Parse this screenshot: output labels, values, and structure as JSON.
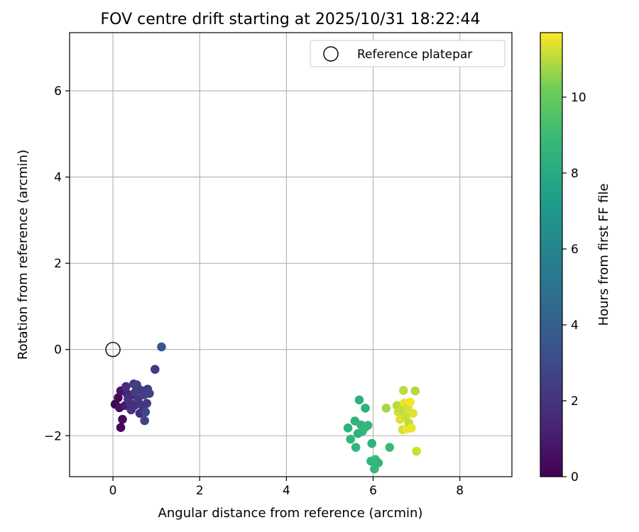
{
  "chart_data": {
    "type": "scatter",
    "title": "FOV centre drift starting at 2025/10/31 18:22:44",
    "xlabel": "Angular distance from reference (arcmin)",
    "ylabel": "Rotation from reference (arcmin)",
    "xlim": [
      -1.0,
      9.2
    ],
    "ylim": [
      -2.95,
      7.35
    ],
    "xticks": [
      0,
      2,
      4,
      6,
      8
    ],
    "yticks": [
      -2,
      0,
      2,
      4,
      6
    ],
    "xtick_labels": [
      "0",
      "2",
      "4",
      "6",
      "8"
    ],
    "ytick_labels": [
      "−2",
      "0",
      "2",
      "4",
      "6"
    ],
    "grid": true,
    "legend": {
      "position": "upper right",
      "label": "Reference platepar"
    },
    "reference_point": {
      "x": 0.0,
      "y": 0.0
    },
    "colorbar": {
      "label": "Hours from first FF file",
      "colormap": "viridis",
      "range": [
        0,
        11.7
      ],
      "ticks": [
        0,
        2,
        4,
        6,
        8,
        10
      ],
      "tick_labels": [
        "0",
        "2",
        "4",
        "6",
        "8",
        "10"
      ]
    },
    "points": [
      {
        "x": 0.05,
        "y": -1.27,
        "c": 0.1
      },
      {
        "x": 0.12,
        "y": -1.12,
        "c": 0.3
      },
      {
        "x": 0.15,
        "y": -1.35,
        "c": 0.5
      },
      {
        "x": 0.18,
        "y": -0.96,
        "c": 0.7
      },
      {
        "x": 0.22,
        "y": -1.62,
        "c": 0.4
      },
      {
        "x": 0.18,
        "y": -1.81,
        "c": 0.2
      },
      {
        "x": 0.28,
        "y": -1.3,
        "c": 1.0
      },
      {
        "x": 0.32,
        "y": -1.02,
        "c": 1.3
      },
      {
        "x": 0.3,
        "y": -0.86,
        "c": 1.6
      },
      {
        "x": 0.35,
        "y": -1.15,
        "c": 1.8
      },
      {
        "x": 0.42,
        "y": -1.4,
        "c": 2.0
      },
      {
        "x": 0.45,
        "y": -1.05,
        "c": 1.5
      },
      {
        "x": 0.48,
        "y": -0.8,
        "c": 2.2
      },
      {
        "x": 0.5,
        "y": -1.3,
        "c": 1.9
      },
      {
        "x": 0.52,
        "y": -0.98,
        "c": 2.4
      },
      {
        "x": 0.55,
        "y": -0.82,
        "c": 2.6
      },
      {
        "x": 0.58,
        "y": -1.15,
        "c": 2.1
      },
      {
        "x": 0.62,
        "y": -1.48,
        "c": 1.7
      },
      {
        "x": 0.65,
        "y": -0.95,
        "c": 2.3
      },
      {
        "x": 0.68,
        "y": -1.3,
        "c": 2.0
      },
      {
        "x": 0.72,
        "y": -1.05,
        "c": 2.5
      },
      {
        "x": 0.73,
        "y": -1.65,
        "c": 2.7
      },
      {
        "x": 0.75,
        "y": -1.45,
        "c": 2.8
      },
      {
        "x": 0.78,
        "y": -1.25,
        "c": 2.2
      },
      {
        "x": 0.8,
        "y": -0.92,
        "c": 2.4
      },
      {
        "x": 0.84,
        "y": -1.02,
        "c": 2.6
      },
      {
        "x": 0.4,
        "y": -1.25,
        "c": 1.8
      },
      {
        "x": 0.97,
        "y": -0.46,
        "c": 2.3
      },
      {
        "x": 1.12,
        "y": 0.06,
        "c": 3.6
      },
      {
        "x": 5.42,
        "y": -1.82,
        "c": 8.4
      },
      {
        "x": 5.48,
        "y": -2.08,
        "c": 8.6
      },
      {
        "x": 5.58,
        "y": -1.66,
        "c": 8.5
      },
      {
        "x": 5.6,
        "y": -2.27,
        "c": 8.7
      },
      {
        "x": 5.65,
        "y": -1.95,
        "c": 8.3
      },
      {
        "x": 5.68,
        "y": -1.17,
        "c": 8.4
      },
      {
        "x": 5.72,
        "y": -1.75,
        "c": 8.6
      },
      {
        "x": 5.75,
        "y": -1.9,
        "c": 8.5
      },
      {
        "x": 5.8,
        "y": -1.82,
        "c": 8.8
      },
      {
        "x": 5.82,
        "y": -1.36,
        "c": 8.4
      },
      {
        "x": 5.88,
        "y": -1.76,
        "c": 8.7
      },
      {
        "x": 5.95,
        "y": -2.59,
        "c": 8.6
      },
      {
        "x": 5.97,
        "y": -2.18,
        "c": 8.5
      },
      {
        "x": 6.03,
        "y": -2.77,
        "c": 8.8
      },
      {
        "x": 6.05,
        "y": -2.55,
        "c": 8.9
      },
      {
        "x": 6.12,
        "y": -2.63,
        "c": 8.6
      },
      {
        "x": 6.3,
        "y": -1.36,
        "c": 10.8
      },
      {
        "x": 6.38,
        "y": -2.27,
        "c": 8.9
      },
      {
        "x": 6.55,
        "y": -1.3,
        "c": 11.0
      },
      {
        "x": 6.58,
        "y": -1.45,
        "c": 11.2
      },
      {
        "x": 6.62,
        "y": -1.62,
        "c": 11.4
      },
      {
        "x": 6.65,
        "y": -1.38,
        "c": 11.1
      },
      {
        "x": 6.68,
        "y": -1.86,
        "c": 11.3
      },
      {
        "x": 6.7,
        "y": -0.95,
        "c": 11.0
      },
      {
        "x": 6.72,
        "y": -1.24,
        "c": 11.5
      },
      {
        "x": 6.75,
        "y": -1.55,
        "c": 11.2
      },
      {
        "x": 6.78,
        "y": -1.84,
        "c": 11.6
      },
      {
        "x": 6.8,
        "y": -1.35,
        "c": 11.3
      },
      {
        "x": 6.82,
        "y": -1.7,
        "c": 11.1
      },
      {
        "x": 6.85,
        "y": -1.22,
        "c": 11.6
      },
      {
        "x": 6.88,
        "y": -1.82,
        "c": 11.5
      },
      {
        "x": 6.92,
        "y": -1.48,
        "c": 11.4
      },
      {
        "x": 6.97,
        "y": -0.96,
        "c": 10.9
      },
      {
        "x": 7.0,
        "y": -2.36,
        "c": 11.2
      }
    ]
  }
}
